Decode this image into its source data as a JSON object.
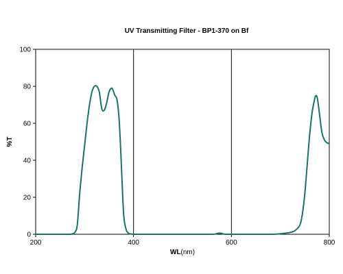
{
  "chart_data": {
    "type": "line",
    "title": "UV Transmitting Filter -  BP1-370 on Bf",
    "xlabel": "WL",
    "xlabel_unit": "(nm)",
    "ylabel": "%T",
    "xlim": [
      200,
      800
    ],
    "ylim": [
      0,
      100
    ],
    "xticks": [
      200,
      400,
      600,
      800
    ],
    "yticks": [
      0,
      20,
      40,
      60,
      80,
      100
    ],
    "grid": {
      "vertical": true,
      "horizontal": false
    },
    "line_color": "#1a7268",
    "series": [
      {
        "x": [
          200,
          265,
          275,
          280,
          285,
          290,
          295,
          300,
          305,
          310,
          315,
          320,
          325,
          330,
          335,
          340,
          345,
          350,
          355,
          358,
          362,
          366,
          370,
          373,
          376,
          380,
          385,
          390,
          395,
          400,
          420,
          500,
          560,
          570,
          575,
          580,
          585,
          600,
          680,
          700,
          720,
          730,
          740,
          745,
          750,
          755,
          760,
          765,
          770,
          773,
          776,
          780,
          785,
          790,
          795,
          800
        ],
        "y": [
          0,
          0,
          0.3,
          1,
          5,
          22,
          36,
          48,
          60,
          70,
          77,
          80,
          80,
          77,
          68,
          67,
          71,
          77,
          79,
          78,
          75,
          73,
          64,
          50,
          32,
          10,
          2.5,
          0.5,
          0.2,
          0,
          0,
          0,
          0,
          0.4,
          0.6,
          0.5,
          0.1,
          0,
          0,
          0.3,
          1,
          2,
          5,
          11,
          22,
          38,
          54,
          66,
          73,
          75,
          73,
          65,
          55,
          51,
          49.5,
          49
        ]
      }
    ]
  }
}
